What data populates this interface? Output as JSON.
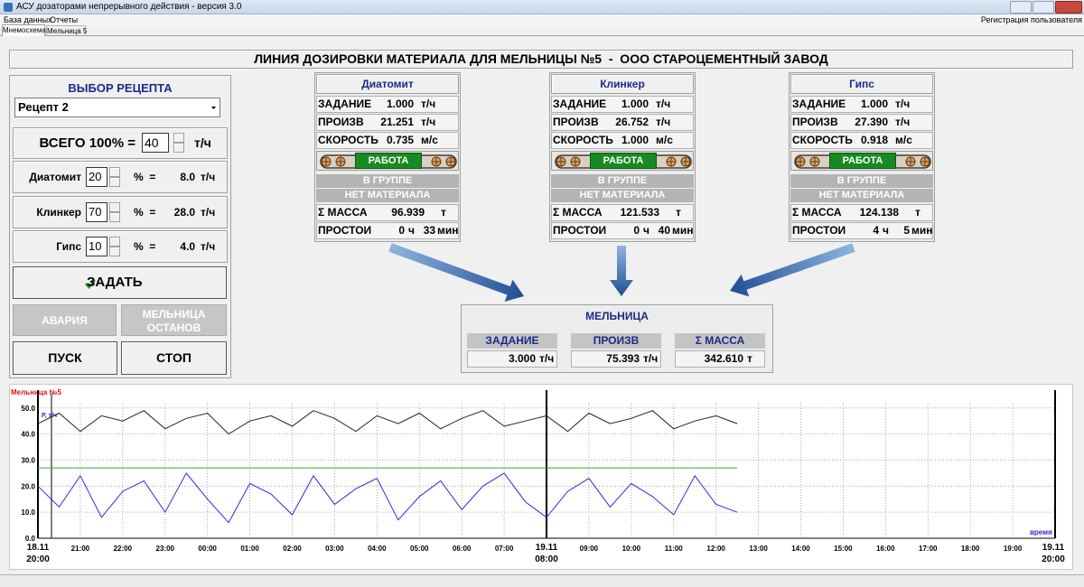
{
  "window": {
    "title": "АСУ дозаторами непрерывного действия - версия 3.0",
    "menu": [
      "База данных",
      "Отчеты"
    ],
    "user": "Регистрация пользователя",
    "tabs": [
      "Мнемосхема",
      "Мельница 5"
    ]
  },
  "header": "ЛИНИЯ ДОЗИРОВКИ МАТЕРИАЛА ДЛЯ МЕЛЬНИЦЫ №5  -  ООО СТАРОЦЕМЕНТНЫЙ ЗАВОД",
  "recipe": {
    "title": "ВЫБОР РЕЦЕПТА",
    "selected": "Рецепт 2",
    "total_label": "ВСЕГО 100% =",
    "total": "40",
    "total_unit": "т/ч",
    "components": [
      {
        "name": "Диатомит",
        "percent": "20",
        "percent_label": "%  =",
        "rate": "8.0",
        "unit": "т/ч"
      },
      {
        "name": "Клинкер",
        "percent": "70",
        "percent_label": "%  =",
        "rate": "28.0",
        "unit": "т/ч"
      },
      {
        "name": "Гипс",
        "percent": "10",
        "percent_label": "%  =",
        "rate": "4.0",
        "unit": "т/ч"
      }
    ],
    "set_button": "ЗАДАТЬ",
    "alarm": "АВАРИЯ",
    "mill_stop": "МЕЛЬНИЦА ОСТАНОВ",
    "start": "ПУСК",
    "stop": "СТОП"
  },
  "feeders": [
    {
      "name": "Диатомит",
      "rows": [
        {
          "label": "ЗАДАНИЕ",
          "value": "1.000",
          "unit": "т/ч"
        },
        {
          "label": "ПРОИЗВ",
          "value": "21.251",
          "unit": "т/ч"
        },
        {
          "label": "СКОРОСТЬ",
          "value": "0.735",
          "unit": "м/с"
        }
      ],
      "status": "РАБОТА",
      "flags": [
        "В ГРУППЕ",
        "НЕТ МАТЕРИАЛА"
      ],
      "mass": {
        "label": "Σ МАССА",
        "value": "96.939",
        "unit": "т"
      },
      "downtime": {
        "label": "ПРОСТОИ",
        "hours": "0",
        "hours_unit": "ч",
        "minutes": "33",
        "minutes_unit": "мин"
      }
    },
    {
      "name": "Клинкер",
      "rows": [
        {
          "label": "ЗАДАНИЕ",
          "value": "1.000",
          "unit": "т/ч"
        },
        {
          "label": "ПРОИЗВ",
          "value": "26.752",
          "unit": "т/ч"
        },
        {
          "label": "СКОРОСТЬ",
          "value": "1.000",
          "unit": "м/с"
        }
      ],
      "status": "РАБОТА",
      "flags": [
        "В ГРУППЕ",
        "НЕТ МАТЕРИАЛА"
      ],
      "mass": {
        "label": "Σ МАССА",
        "value": "121.533",
        "unit": "т"
      },
      "downtime": {
        "label": "ПРОСТОИ",
        "hours": "0",
        "hours_unit": "ч",
        "minutes": "40",
        "minutes_unit": "мин"
      }
    },
    {
      "name": "Гипс",
      "rows": [
        {
          "label": "ЗАДАНИЕ",
          "value": "1.000",
          "unit": "т/ч"
        },
        {
          "label": "ПРОИЗВ",
          "value": "27.390",
          "unit": "т/ч"
        },
        {
          "label": "СКОРОСТЬ",
          "value": "0.918",
          "unit": "м/с"
        }
      ],
      "status": "РАБОТА",
      "flags": [
        "В ГРУППЕ",
        "НЕТ МАТЕРИАЛА"
      ],
      "mass": {
        "label": "Σ МАССА",
        "value": "124.138",
        "unit": "т"
      },
      "downtime": {
        "label": "ПРОСТОИ",
        "hours": "4",
        "hours_unit": "ч",
        "minutes": "5",
        "minutes_unit": "мин"
      }
    }
  ],
  "mill": {
    "title": "МЕЛЬНИЦА",
    "cells": [
      {
        "label": "ЗАДАНИЕ",
        "value": "3.000",
        "unit": "т/ч"
      },
      {
        "label": "ПРОИЗВ",
        "value": "75.393",
        "unit": "т/ч"
      },
      {
        "label": "Σ МАССА",
        "value": "342.610",
        "unit": "т"
      }
    ]
  },
  "chart_data": {
    "type": "line",
    "title": "Мельница №5",
    "y_label": "Р, т/ч",
    "x_label": "время",
    "x": [
      "18.11 20:00",
      "18.11 20:30",
      "18.11 21:00",
      "18.11 21:30",
      "18.11 22:00",
      "18.11 22:30",
      "18.11 23:00",
      "18.11 23:30",
      "19.11 00:00",
      "19.11 00:30",
      "19.11 01:00",
      "19.11 01:30",
      "19.11 02:00",
      "19.11 02:30",
      "19.11 03:00",
      "19.11 03:30",
      "19.11 04:00",
      "19.11 04:30",
      "19.11 05:00",
      "19.11 05:30",
      "19.11 06:00",
      "19.11 06:30",
      "19.11 07:00",
      "19.11 07:30",
      "19.11 08:00",
      "19.11 08:30",
      "19.11 09:00",
      "19.11 09:30",
      "19.11 10:00",
      "19.11 10:30",
      "19.11 11:00",
      "19.11 11:30",
      "19.11 12:00",
      "19.11 12:30"
    ],
    "series": [
      {
        "color": "#222222",
        "values": [
          44,
          48,
          41,
          47,
          45,
          49,
          42,
          46,
          48,
          40,
          45,
          47,
          43,
          49,
          46,
          41,
          47,
          44,
          48,
          42,
          46,
          49,
          43,
          45,
          47,
          41,
          48,
          44,
          46,
          49,
          42,
          45,
          47,
          44
        ]
      },
      {
        "color": "#2a2adf",
        "values": [
          20,
          12,
          24,
          8,
          18,
          22,
          10,
          25,
          15,
          6,
          21,
          17,
          9,
          24,
          13,
          19,
          23,
          7,
          16,
          22,
          11,
          20,
          25,
          14,
          8,
          18,
          23,
          12,
          21,
          16,
          9,
          24,
          13,
          10
        ]
      },
      {
        "color": "#33aa33",
        "values": [
          27,
          27,
          27,
          27,
          27,
          27,
          27,
          27,
          27,
          27,
          27,
          27,
          27,
          27,
          27,
          27,
          27,
          27,
          27,
          27,
          27,
          27,
          27,
          27,
          27,
          27,
          27,
          27,
          27,
          27,
          27,
          27,
          27,
          27
        ]
      }
    ],
    "xlim": [
      "18.11 20:00",
      "19.11 20:00"
    ],
    "xticks": [
      {
        "value": "18.11 20:00",
        "label": "18.11\n20:00"
      },
      {
        "value": "18.11 21:00",
        "label": "21:00"
      },
      {
        "value": "18.11 22:00",
        "label": "22:00"
      },
      {
        "value": "18.11 23:00",
        "label": "23:00"
      },
      {
        "value": "19.11 00:00",
        "label": "00:00"
      },
      {
        "value": "19.11 01:00",
        "label": "01:00"
      },
      {
        "value": "19.11 02:00",
        "label": "02:00"
      },
      {
        "value": "19.11 03:00",
        "label": "03:00"
      },
      {
        "value": "19.11 04:00",
        "label": "04:00"
      },
      {
        "value": "19.11 05:00",
        "label": "05:00"
      },
      {
        "value": "19.11 06:00",
        "label": "06:00"
      },
      {
        "value": "19.11 07:00",
        "label": "07:00"
      },
      {
        "value": "19.11 08:00",
        "label": "19.11\n08:00"
      },
      {
        "value": "19.11 09:00",
        "label": "09:00"
      },
      {
        "value": "19.11 10:00",
        "label": "10:00"
      },
      {
        "value": "19.11 11:00",
        "label": "11:00"
      },
      {
        "value": "19.11 12:00",
        "label": "12:00"
      },
      {
        "value": "19.11 13:00",
        "label": "13:00"
      },
      {
        "value": "19.11 14:00",
        "label": "14:00"
      },
      {
        "value": "19.11 15:00",
        "label": "15:00"
      },
      {
        "value": "19.11 16:00",
        "label": "16:00"
      },
      {
        "value": "19.11 17:00",
        "label": "17:00"
      },
      {
        "value": "19.11 18:00",
        "label": "18:00"
      },
      {
        "value": "19.11 19:00",
        "label": "19:00"
      },
      {
        "value": "19.11 20:00",
        "label": "19.11\n20:00"
      }
    ],
    "ylim": [
      0,
      52
    ],
    "yticks": [
      {
        "value": 0,
        "label": "0.0"
      },
      {
        "value": 10,
        "label": "10.0"
      },
      {
        "value": 20,
        "label": "20.0"
      },
      {
        "value": 30,
        "label": "30.0"
      },
      {
        "value": 40,
        "label": "40.0"
      },
      {
        "value": 50,
        "label": "50.0"
      }
    ],
    "grid": true
  }
}
